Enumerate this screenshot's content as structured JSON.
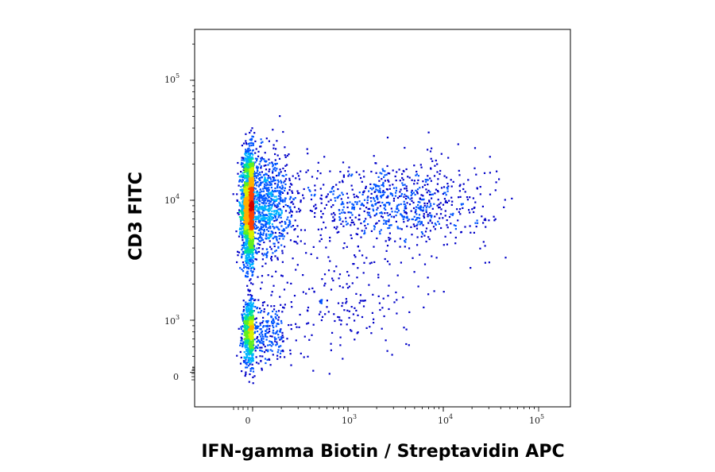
{
  "chart_data": {
    "type": "scatter",
    "title": "",
    "xlabel": "IFN-gamma Biotin / Streptavidin APC",
    "ylabel": "CD3 FITC",
    "x_scale": "biexponential",
    "y_scale": "biexponential",
    "xlim": [
      -500,
      200000
    ],
    "ylim": [
      -200,
      250000
    ],
    "x_ticks": [
      {
        "base": "0",
        "exp": ""
      },
      {
        "base": "10",
        "exp": "3"
      },
      {
        "base": "10",
        "exp": "4"
      },
      {
        "base": "10",
        "exp": "5"
      }
    ],
    "y_ticks": [
      {
        "base": "0",
        "exp": ""
      },
      {
        "base": "10",
        "exp": "3"
      },
      {
        "base": "10",
        "exp": "4"
      },
      {
        "base": "10",
        "exp": "5"
      }
    ],
    "grid": false,
    "legend": "none",
    "color_map": [
      "#0000c8",
      "#0055ff",
      "#00b4ff",
      "#00e0a0",
      "#60f020",
      "#d8f000",
      "#ffb000",
      "#ff4000",
      "#d00000"
    ],
    "populations": [
      {
        "x_center": 40,
        "y_center": 9000,
        "x_spread": 90,
        "y_spread_log": 0.22,
        "relative_count": 1.0
      },
      {
        "x_center": 40,
        "y_center": 800,
        "x_spread": 80,
        "y_spread_log": 0.13,
        "relative_count": 0.3
      },
      {
        "x_center": 3000,
        "y_center": 9500,
        "x_spread_log": 0.5,
        "y_spread_log": 0.18,
        "relative_count": 0.25
      },
      {
        "x_center": 800,
        "y_center": 1500,
        "x_spread_log": 0.4,
        "y_spread_log": 0.25,
        "relative_count": 0.06
      }
    ]
  }
}
